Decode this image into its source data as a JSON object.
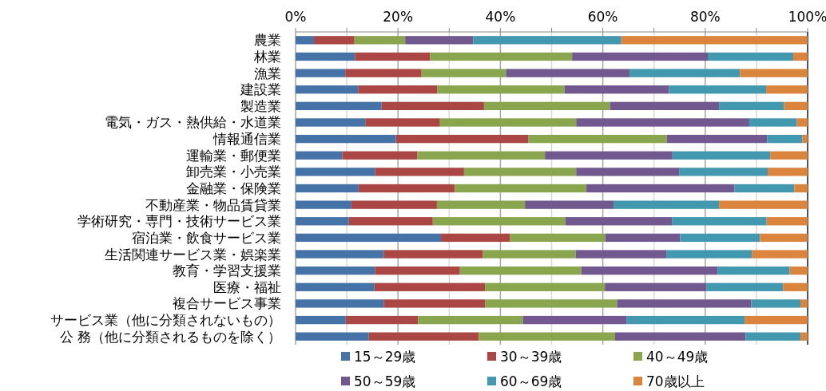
{
  "chart_data": {
    "type": "bar",
    "orientation": "horizontal",
    "stacked": true,
    "grid": "x",
    "legend": "bottom",
    "categories": [
      "農業",
      "林業",
      "漁業",
      "建設業",
      "製造業",
      "電気・ガス・熱供給・水道業",
      "情報通信業",
      "運輸業・郵便業",
      "卸売業・小売業",
      "金融業・保険業",
      "不動産業・物品賃貸業",
      "学術研究・専門・技術サービス業",
      "宿泊業・飲食サービス業",
      "生活関連サービス業・娯楽業",
      "教育・学習支援業",
      "医療・福祉",
      "複合サービス事業",
      "サービス業（他に分類されないもの）",
      "公 務（他に分類されるものを除く）"
    ],
    "xlim": [
      0,
      100
    ],
    "xticks": [
      {
        "value": 0,
        "label": "0%"
      },
      {
        "value": 10,
        "label": null
      },
      {
        "value": 20,
        "label": "20%"
      },
      {
        "value": 30,
        "label": null
      },
      {
        "value": 40,
        "label": "40%"
      },
      {
        "value": 50,
        "label": null
      },
      {
        "value": 60,
        "label": "60%"
      },
      {
        "value": 70,
        "label": null
      },
      {
        "value": 80,
        "label": "80%"
      },
      {
        "value": 90,
        "label": null
      },
      {
        "value": 100,
        "label": "100%"
      }
    ],
    "series": [
      {
        "name": "15～29歳",
        "color": "#4572a7",
        "values": [
          3.6,
          11.6,
          9.7,
          12.2,
          16.8,
          13.6,
          19.6,
          9.1,
          15.5,
          12.3,
          10.9,
          10.4,
          28.4,
          17.2,
          15.5,
          15.4,
          17.2,
          9.8,
          14.3
        ]
      },
      {
        "name": "30～39歳",
        "color": "#aa4643",
        "values": [
          7.9,
          14.7,
          14.9,
          15.5,
          20.0,
          14.6,
          25.9,
          14.7,
          17.4,
          18.8,
          16.7,
          16.4,
          13.5,
          19.4,
          16.6,
          21.6,
          19.8,
          14.1,
          21.5
        ]
      },
      {
        "name": "40～49歳",
        "color": "#89a54e",
        "values": [
          9.9,
          27.7,
          16.5,
          24.8,
          24.6,
          26.6,
          27.0,
          24.9,
          21.9,
          25.7,
          17.2,
          25.9,
          18.6,
          18.1,
          23.7,
          23.4,
          25.8,
          20.5,
          26.6
        ]
      },
      {
        "name": "50～59歳",
        "color": "#71588f",
        "values": [
          13.3,
          26.5,
          24.1,
          20.4,
          21.3,
          33.8,
          19.6,
          24.9,
          20.1,
          28.9,
          17.3,
          20.8,
          14.6,
          17.7,
          26.6,
          19.8,
          26.2,
          20.3,
          25.5
        ]
      },
      {
        "name": "60～69歳",
        "color": "#4198af",
        "values": [
          28.9,
          16.7,
          21.6,
          19.0,
          12.7,
          9.3,
          6.9,
          19.1,
          17.3,
          11.7,
          20.6,
          18.5,
          15.6,
          16.7,
          14.1,
          15.0,
          9.6,
          23.0,
          10.7
        ]
      },
      {
        "name": "70歳以上",
        "color": "#db843d",
        "values": [
          36.4,
          2.8,
          13.2,
          8.1,
          4.6,
          2.1,
          1.0,
          7.3,
          7.8,
          2.6,
          17.3,
          8.0,
          9.3,
          10.9,
          3.5,
          4.8,
          1.4,
          12.3,
          1.4
        ]
      }
    ]
  }
}
